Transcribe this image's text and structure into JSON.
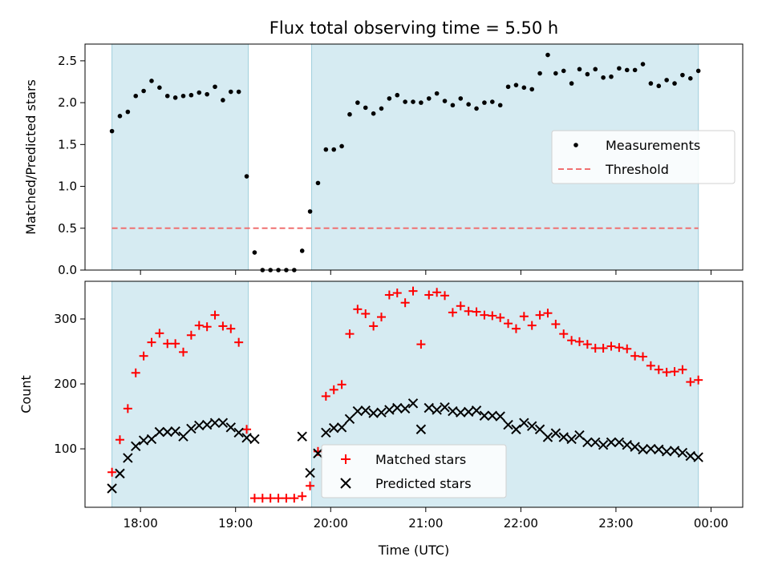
{
  "figure": {
    "title": "Flux total observing time = 5.50 h"
  },
  "chart_data": [
    {
      "type": "scatter",
      "title": "Flux total observing time = 5.50 h",
      "xlabel": "",
      "ylabel": "Matched/Predicted stars",
      "xlim": [
        "17:25",
        "00:20"
      ],
      "ylim": [
        0,
        2.7
      ],
      "yticks": [
        "0.0",
        "0.5",
        "1.0",
        "1.5",
        "2.0",
        "2.5"
      ],
      "shaded_intervals": [
        [
          "17:42",
          "19:08"
        ],
        [
          "19:48",
          "23:52"
        ]
      ],
      "threshold": 0.5,
      "legend_position": "center-right",
      "series": [
        {
          "name": "Measurements",
          "color": "#000000",
          "marker": "dot",
          "points": [
            [
              "17:42",
              1.66
            ],
            [
              "17:47",
              1.84
            ],
            [
              "17:52",
              1.89
            ],
            [
              "17:57",
              2.08
            ],
            [
              "18:02",
              2.14
            ],
            [
              "18:07",
              2.26
            ],
            [
              "18:12",
              2.18
            ],
            [
              "18:17",
              2.08
            ],
            [
              "18:22",
              2.06
            ],
            [
              "18:27",
              2.08
            ],
            [
              "18:32",
              2.09
            ],
            [
              "18:37",
              2.12
            ],
            [
              "18:42",
              2.1
            ],
            [
              "18:47",
              2.19
            ],
            [
              "18:52",
              2.03
            ],
            [
              "18:57",
              2.13
            ],
            [
              "19:02",
              2.13
            ],
            [
              "19:07",
              1.12
            ],
            [
              "19:12",
              0.21
            ],
            [
              "19:17",
              0.0
            ],
            [
              "19:22",
              0.0
            ],
            [
              "19:27",
              0.0
            ],
            [
              "19:32",
              0.0
            ],
            [
              "19:37",
              0.0
            ],
            [
              "19:42",
              0.23
            ],
            [
              "19:47",
              0.7
            ],
            [
              "19:52",
              1.04
            ],
            [
              "19:57",
              1.44
            ],
            [
              "20:02",
              1.44
            ],
            [
              "20:07",
              1.48
            ],
            [
              "20:12",
              1.86
            ],
            [
              "20:17",
              2.0
            ],
            [
              "20:22",
              1.94
            ],
            [
              "20:27",
              1.87
            ],
            [
              "20:32",
              1.93
            ],
            [
              "20:37",
              2.05
            ],
            [
              "20:42",
              2.09
            ],
            [
              "20:47",
              2.01
            ],
            [
              "20:52",
              2.01
            ],
            [
              "20:57",
              2.0
            ],
            [
              "21:02",
              2.05
            ],
            [
              "21:07",
              2.11
            ],
            [
              "21:12",
              2.02
            ],
            [
              "21:17",
              1.97
            ],
            [
              "21:22",
              2.05
            ],
            [
              "21:27",
              1.98
            ],
            [
              "21:32",
              1.93
            ],
            [
              "21:37",
              2.0
            ],
            [
              "21:42",
              2.01
            ],
            [
              "21:47",
              1.97
            ],
            [
              "21:52",
              2.19
            ],
            [
              "21:57",
              2.21
            ],
            [
              "22:02",
              2.18
            ],
            [
              "22:07",
              2.16
            ],
            [
              "22:12",
              2.35
            ],
            [
              "22:17",
              2.57
            ],
            [
              "22:22",
              2.35
            ],
            [
              "22:27",
              2.38
            ],
            [
              "22:32",
              2.23
            ],
            [
              "22:37",
              2.4
            ],
            [
              "22:42",
              2.34
            ],
            [
              "22:47",
              2.4
            ],
            [
              "22:52",
              2.3
            ],
            [
              "22:57",
              2.31
            ],
            [
              "23:02",
              2.41
            ],
            [
              "23:07",
              2.39
            ],
            [
              "23:12",
              2.39
            ],
            [
              "23:17",
              2.46
            ],
            [
              "23:22",
              2.23
            ],
            [
              "23:27",
              2.2
            ],
            [
              "23:32",
              2.27
            ],
            [
              "23:37",
              2.23
            ],
            [
              "23:42",
              2.33
            ],
            [
              "23:47",
              2.29
            ],
            [
              "23:52",
              2.38
            ]
          ]
        },
        {
          "name": "Threshold",
          "color": "#f07070",
          "style": "dashed",
          "value": 0.5
        }
      ]
    },
    {
      "type": "scatter",
      "title": "",
      "xlabel": "Time (UTC)",
      "ylabel": "Count",
      "xlim": [
        "17:25",
        "00:20"
      ],
      "ylim": [
        10,
        358
      ],
      "yticks": [
        "100",
        "200",
        "300"
      ],
      "xticks": [
        "18:00",
        "19:00",
        "20:00",
        "21:00",
        "22:00",
        "23:00",
        "00:00"
      ],
      "shaded_intervals": [
        [
          "17:42",
          "19:08"
        ],
        [
          "19:48",
          "23:52"
        ]
      ],
      "legend_position": "bottom-center",
      "series": [
        {
          "name": "Matched stars",
          "color": "#ff0000",
          "marker": "plus",
          "points": [
            [
              "17:42",
              64
            ],
            [
              "17:47",
              114
            ],
            [
              "17:52",
              162
            ],
            [
              "17:57",
              217
            ],
            [
              "18:02",
              243
            ],
            [
              "18:07",
              264
            ],
            [
              "18:12",
              278
            ],
            [
              "18:17",
              262
            ],
            [
              "18:22",
              262
            ],
            [
              "18:27",
              249
            ],
            [
              "18:32",
              275
            ],
            [
              "18:37",
              290
            ],
            [
              "18:42",
              288
            ],
            [
              "18:47",
              306
            ],
            [
              "18:52",
              289
            ],
            [
              "18:57",
              285
            ],
            [
              "19:02",
              264
            ],
            [
              "19:07",
              130
            ],
            [
              "19:12",
              24
            ],
            [
              "19:17",
              24
            ],
            [
              "19:22",
              24
            ],
            [
              "19:27",
              24
            ],
            [
              "19:32",
              24
            ],
            [
              "19:37",
              24
            ],
            [
              "19:42",
              27
            ],
            [
              "19:47",
              43
            ],
            [
              "19:52",
              96
            ],
            [
              "19:57",
              181
            ],
            [
              "20:02",
              191
            ],
            [
              "20:07",
              199
            ],
            [
              "20:12",
              277
            ],
            [
              "20:17",
              315
            ],
            [
              "20:22",
              308
            ],
            [
              "20:27",
              289
            ],
            [
              "20:32",
              303
            ],
            [
              "20:37",
              337
            ],
            [
              "20:42",
              340
            ],
            [
              "20:47",
              325
            ],
            [
              "20:52",
              343
            ],
            [
              "20:57",
              261
            ],
            [
              "21:02",
              337
            ],
            [
              "21:07",
              341
            ],
            [
              "21:12",
              336
            ],
            [
              "21:17",
              310
            ],
            [
              "21:22",
              320
            ],
            [
              "21:27",
              312
            ],
            [
              "21:32",
              311
            ],
            [
              "21:37",
              306
            ],
            [
              "21:42",
              305
            ],
            [
              "21:47",
              302
            ],
            [
              "21:52",
              293
            ],
            [
              "21:57",
              285
            ],
            [
              "22:02",
              304
            ],
            [
              "22:07",
              290
            ],
            [
              "22:12",
              306
            ],
            [
              "22:17",
              309
            ],
            [
              "22:22",
              292
            ],
            [
              "22:27",
              277
            ],
            [
              "22:32",
              267
            ],
            [
              "22:37",
              265
            ],
            [
              "22:42",
              261
            ],
            [
              "22:47",
              255
            ],
            [
              "22:52",
              255
            ],
            [
              "22:57",
              258
            ],
            [
              "23:02",
              256
            ],
            [
              "23:07",
              254
            ],
            [
              "23:12",
              243
            ],
            [
              "23:17",
              242
            ],
            [
              "23:22",
              228
            ],
            [
              "23:27",
              222
            ],
            [
              "23:32",
              218
            ],
            [
              "23:37",
              219
            ],
            [
              "23:42",
              222
            ],
            [
              "23:47",
              203
            ],
            [
              "23:52",
              206
            ]
          ]
        },
        {
          "name": "Predicted stars",
          "color": "#000000",
          "marker": "x",
          "points": [
            [
              "17:42",
              39
            ],
            [
              "17:47",
              62
            ],
            [
              "17:52",
              86
            ],
            [
              "17:57",
              104
            ],
            [
              "18:02",
              113
            ],
            [
              "18:07",
              115
            ],
            [
              "18:12",
              126
            ],
            [
              "18:17",
              126
            ],
            [
              "18:22",
              127
            ],
            [
              "18:27",
              119
            ],
            [
              "18:32",
              131
            ],
            [
              "18:37",
              136
            ],
            [
              "18:42",
              137
            ],
            [
              "18:47",
              140
            ],
            [
              "18:52",
              140
            ],
            [
              "18:57",
              133
            ],
            [
              "19:02",
              125
            ],
            [
              "19:07",
              117
            ],
            [
              "19:12",
              115
            ],
            [
              "19:42",
              119
            ],
            [
              "19:47",
              63
            ],
            [
              "19:52",
              93
            ],
            [
              "19:57",
              125
            ],
            [
              "20:02",
              132
            ],
            [
              "20:07",
              133
            ],
            [
              "20:12",
              146
            ],
            [
              "20:17",
              158
            ],
            [
              "20:22",
              159
            ],
            [
              "20:27",
              155
            ],
            [
              "20:32",
              156
            ],
            [
              "20:37",
              160
            ],
            [
              "20:42",
              163
            ],
            [
              "20:47",
              162
            ],
            [
              "20:52",
              170
            ],
            [
              "20:57",
              130
            ],
            [
              "21:02",
              163
            ],
            [
              "21:07",
              160
            ],
            [
              "21:12",
              164
            ],
            [
              "21:17",
              158
            ],
            [
              "21:22",
              156
            ],
            [
              "21:27",
              157
            ],
            [
              "21:32",
              159
            ],
            [
              "21:37",
              151
            ],
            [
              "21:42",
              151
            ],
            [
              "21:47",
              150
            ],
            [
              "21:52",
              137
            ],
            [
              "21:57",
              130
            ],
            [
              "22:02",
              140
            ],
            [
              "22:07",
              135
            ],
            [
              "22:12",
              130
            ],
            [
              "22:17",
              118
            ],
            [
              "22:22",
              124
            ],
            [
              "22:27",
              118
            ],
            [
              "22:32",
              115
            ],
            [
              "22:37",
              121
            ],
            [
              "22:42",
              110
            ],
            [
              "22:47",
              110
            ],
            [
              "22:52",
              106
            ],
            [
              "22:57",
              110
            ],
            [
              "23:02",
              110
            ],
            [
              "23:07",
              106
            ],
            [
              "23:12",
              103
            ],
            [
              "23:17",
              99
            ],
            [
              "23:22",
              100
            ],
            [
              "23:27",
              99
            ],
            [
              "23:32",
              96
            ],
            [
              "23:37",
              97
            ],
            [
              "23:42",
              94
            ],
            [
              "23:47",
              89
            ],
            [
              "23:52",
              87
            ]
          ]
        }
      ]
    }
  ]
}
